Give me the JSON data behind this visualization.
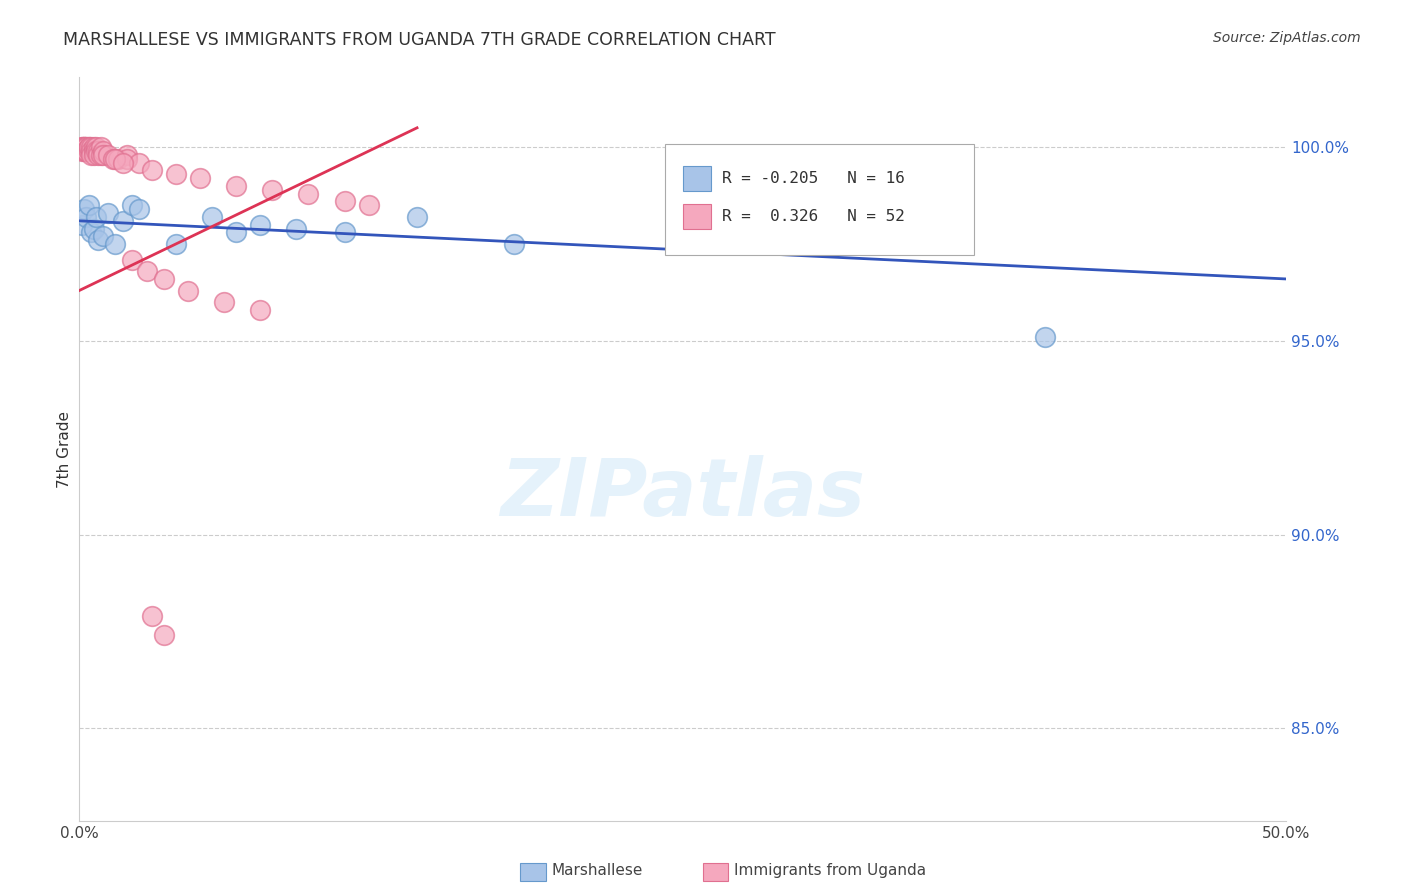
{
  "title": "MARSHALLESE VS IMMIGRANTS FROM UGANDA 7TH GRADE CORRELATION CHART",
  "source": "Source: ZipAtlas.com",
  "ylabel": "7th Grade",
  "xlim": [
    0.0,
    0.5
  ],
  "ylim": [
    0.826,
    1.018
  ],
  "xticks": [
    0.0,
    0.1,
    0.2,
    0.3,
    0.4,
    0.5
  ],
  "xticklabels": [
    "0.0%",
    "",
    "",
    "",
    "",
    "50.0%"
  ],
  "yticks": [
    0.85,
    0.9,
    0.95,
    1.0
  ],
  "yticklabels": [
    "85.0%",
    "90.0%",
    "95.0%",
    "100.0%"
  ],
  "blue_color": "#A8C4E8",
  "pink_color": "#F5A8BE",
  "blue_edge_color": "#6699CC",
  "pink_edge_color": "#E07090",
  "blue_line_color": "#3355BB",
  "pink_line_color": "#DD3355",
  "marshallese_label": "Marshallese",
  "uganda_label": "Immigrants from Uganda",
  "blue_scatter_x": [
    0.001,
    0.002,
    0.003,
    0.004,
    0.005,
    0.006,
    0.007,
    0.008,
    0.01,
    0.012,
    0.015,
    0.018,
    0.022,
    0.025,
    0.04,
    0.055,
    0.065,
    0.075,
    0.09,
    0.11,
    0.14,
    0.18,
    0.4
  ],
  "blue_scatter_y": [
    0.98,
    0.984,
    0.982,
    0.985,
    0.978,
    0.979,
    0.982,
    0.976,
    0.977,
    0.983,
    0.975,
    0.981,
    0.985,
    0.984,
    0.975,
    0.982,
    0.978,
    0.98,
    0.979,
    0.978,
    0.982,
    0.975,
    0.951
  ],
  "pink_scatter_x": [
    0.001,
    0.001,
    0.001,
    0.002,
    0.002,
    0.002,
    0.002,
    0.003,
    0.003,
    0.003,
    0.003,
    0.004,
    0.004,
    0.004,
    0.005,
    0.005,
    0.005,
    0.006,
    0.006,
    0.006,
    0.007,
    0.007,
    0.008,
    0.008,
    0.009,
    0.009,
    0.01,
    0.01,
    0.012,
    0.014,
    0.016,
    0.02,
    0.02,
    0.025,
    0.03,
    0.04,
    0.05,
    0.065,
    0.08,
    0.095,
    0.11,
    0.12,
    0.015,
    0.018,
    0.022,
    0.028,
    0.035,
    0.045,
    0.06,
    0.075,
    0.03,
    0.035
  ],
  "pink_scatter_y": [
    1.0,
    1.0,
    0.999,
    1.0,
    1.0,
    0.999,
    1.0,
    1.0,
    0.999,
    1.0,
    0.999,
    1.0,
    0.999,
    1.0,
    1.0,
    0.999,
    0.998,
    1.0,
    0.999,
    0.998,
    1.0,
    0.999,
    0.999,
    0.998,
    1.0,
    0.998,
    0.999,
    0.998,
    0.998,
    0.997,
    0.997,
    0.998,
    0.997,
    0.996,
    0.994,
    0.993,
    0.992,
    0.99,
    0.989,
    0.988,
    0.986,
    0.985,
    0.997,
    0.996,
    0.971,
    0.968,
    0.966,
    0.963,
    0.96,
    0.958,
    0.879,
    0.874
  ],
  "blue_line_x0": 0.0,
  "blue_line_x1": 0.5,
  "blue_line_y0": 0.981,
  "blue_line_y1": 0.966,
  "pink_line_x0": 0.0,
  "pink_line_x1": 0.14,
  "pink_line_y0": 0.963,
  "pink_line_y1": 1.005,
  "watermark": "ZIPatlas",
  "background_color": "#FFFFFF",
  "grid_color": "#CCCCCC"
}
